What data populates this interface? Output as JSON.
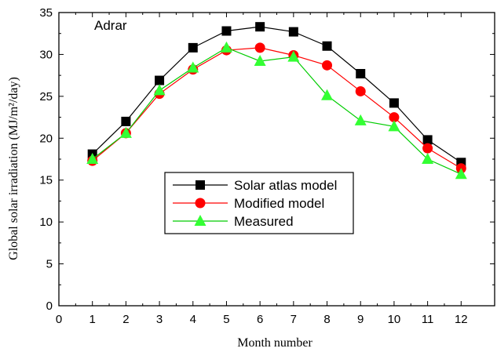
{
  "chart_data": {
    "type": "line",
    "title": "",
    "annotation": "Adrar",
    "xlabel": "Month number",
    "ylabel": "Global solar irradiation (MJ/m²/day)",
    "xlim": [
      0,
      13
    ],
    "ylim": [
      0,
      35
    ],
    "x_ticks": [
      0,
      1,
      2,
      3,
      4,
      5,
      6,
      7,
      8,
      9,
      10,
      11,
      12
    ],
    "y_ticks": [
      0,
      5,
      10,
      15,
      20,
      25,
      30,
      35
    ],
    "grid": false,
    "legend_position": "center",
    "x": [
      1,
      2,
      3,
      4,
      5,
      6,
      7,
      8,
      9,
      10,
      11,
      12
    ],
    "series": [
      {
        "name": "Solar atlas model",
        "marker": "square",
        "line_color": "#000000",
        "marker_color": "#000000",
        "values": [
          18.1,
          22.0,
          26.9,
          30.8,
          32.8,
          33.3,
          32.7,
          31.0,
          27.7,
          24.2,
          19.8,
          17.1
        ]
      },
      {
        "name": "Modified model",
        "marker": "circle",
        "line_color": "#ff0000",
        "marker_color": "#ff0000",
        "values": [
          17.3,
          20.6,
          25.3,
          28.2,
          30.5,
          30.8,
          29.9,
          28.7,
          25.6,
          22.5,
          18.8,
          16.4
        ]
      },
      {
        "name": "Measured",
        "marker": "triangle",
        "line_color": "#00cc00",
        "marker_color": "#33ff33",
        "values": [
          17.5,
          20.6,
          25.7,
          28.4,
          30.8,
          29.2,
          29.7,
          25.1,
          22.1,
          21.4,
          17.5,
          15.7
        ]
      }
    ]
  }
}
